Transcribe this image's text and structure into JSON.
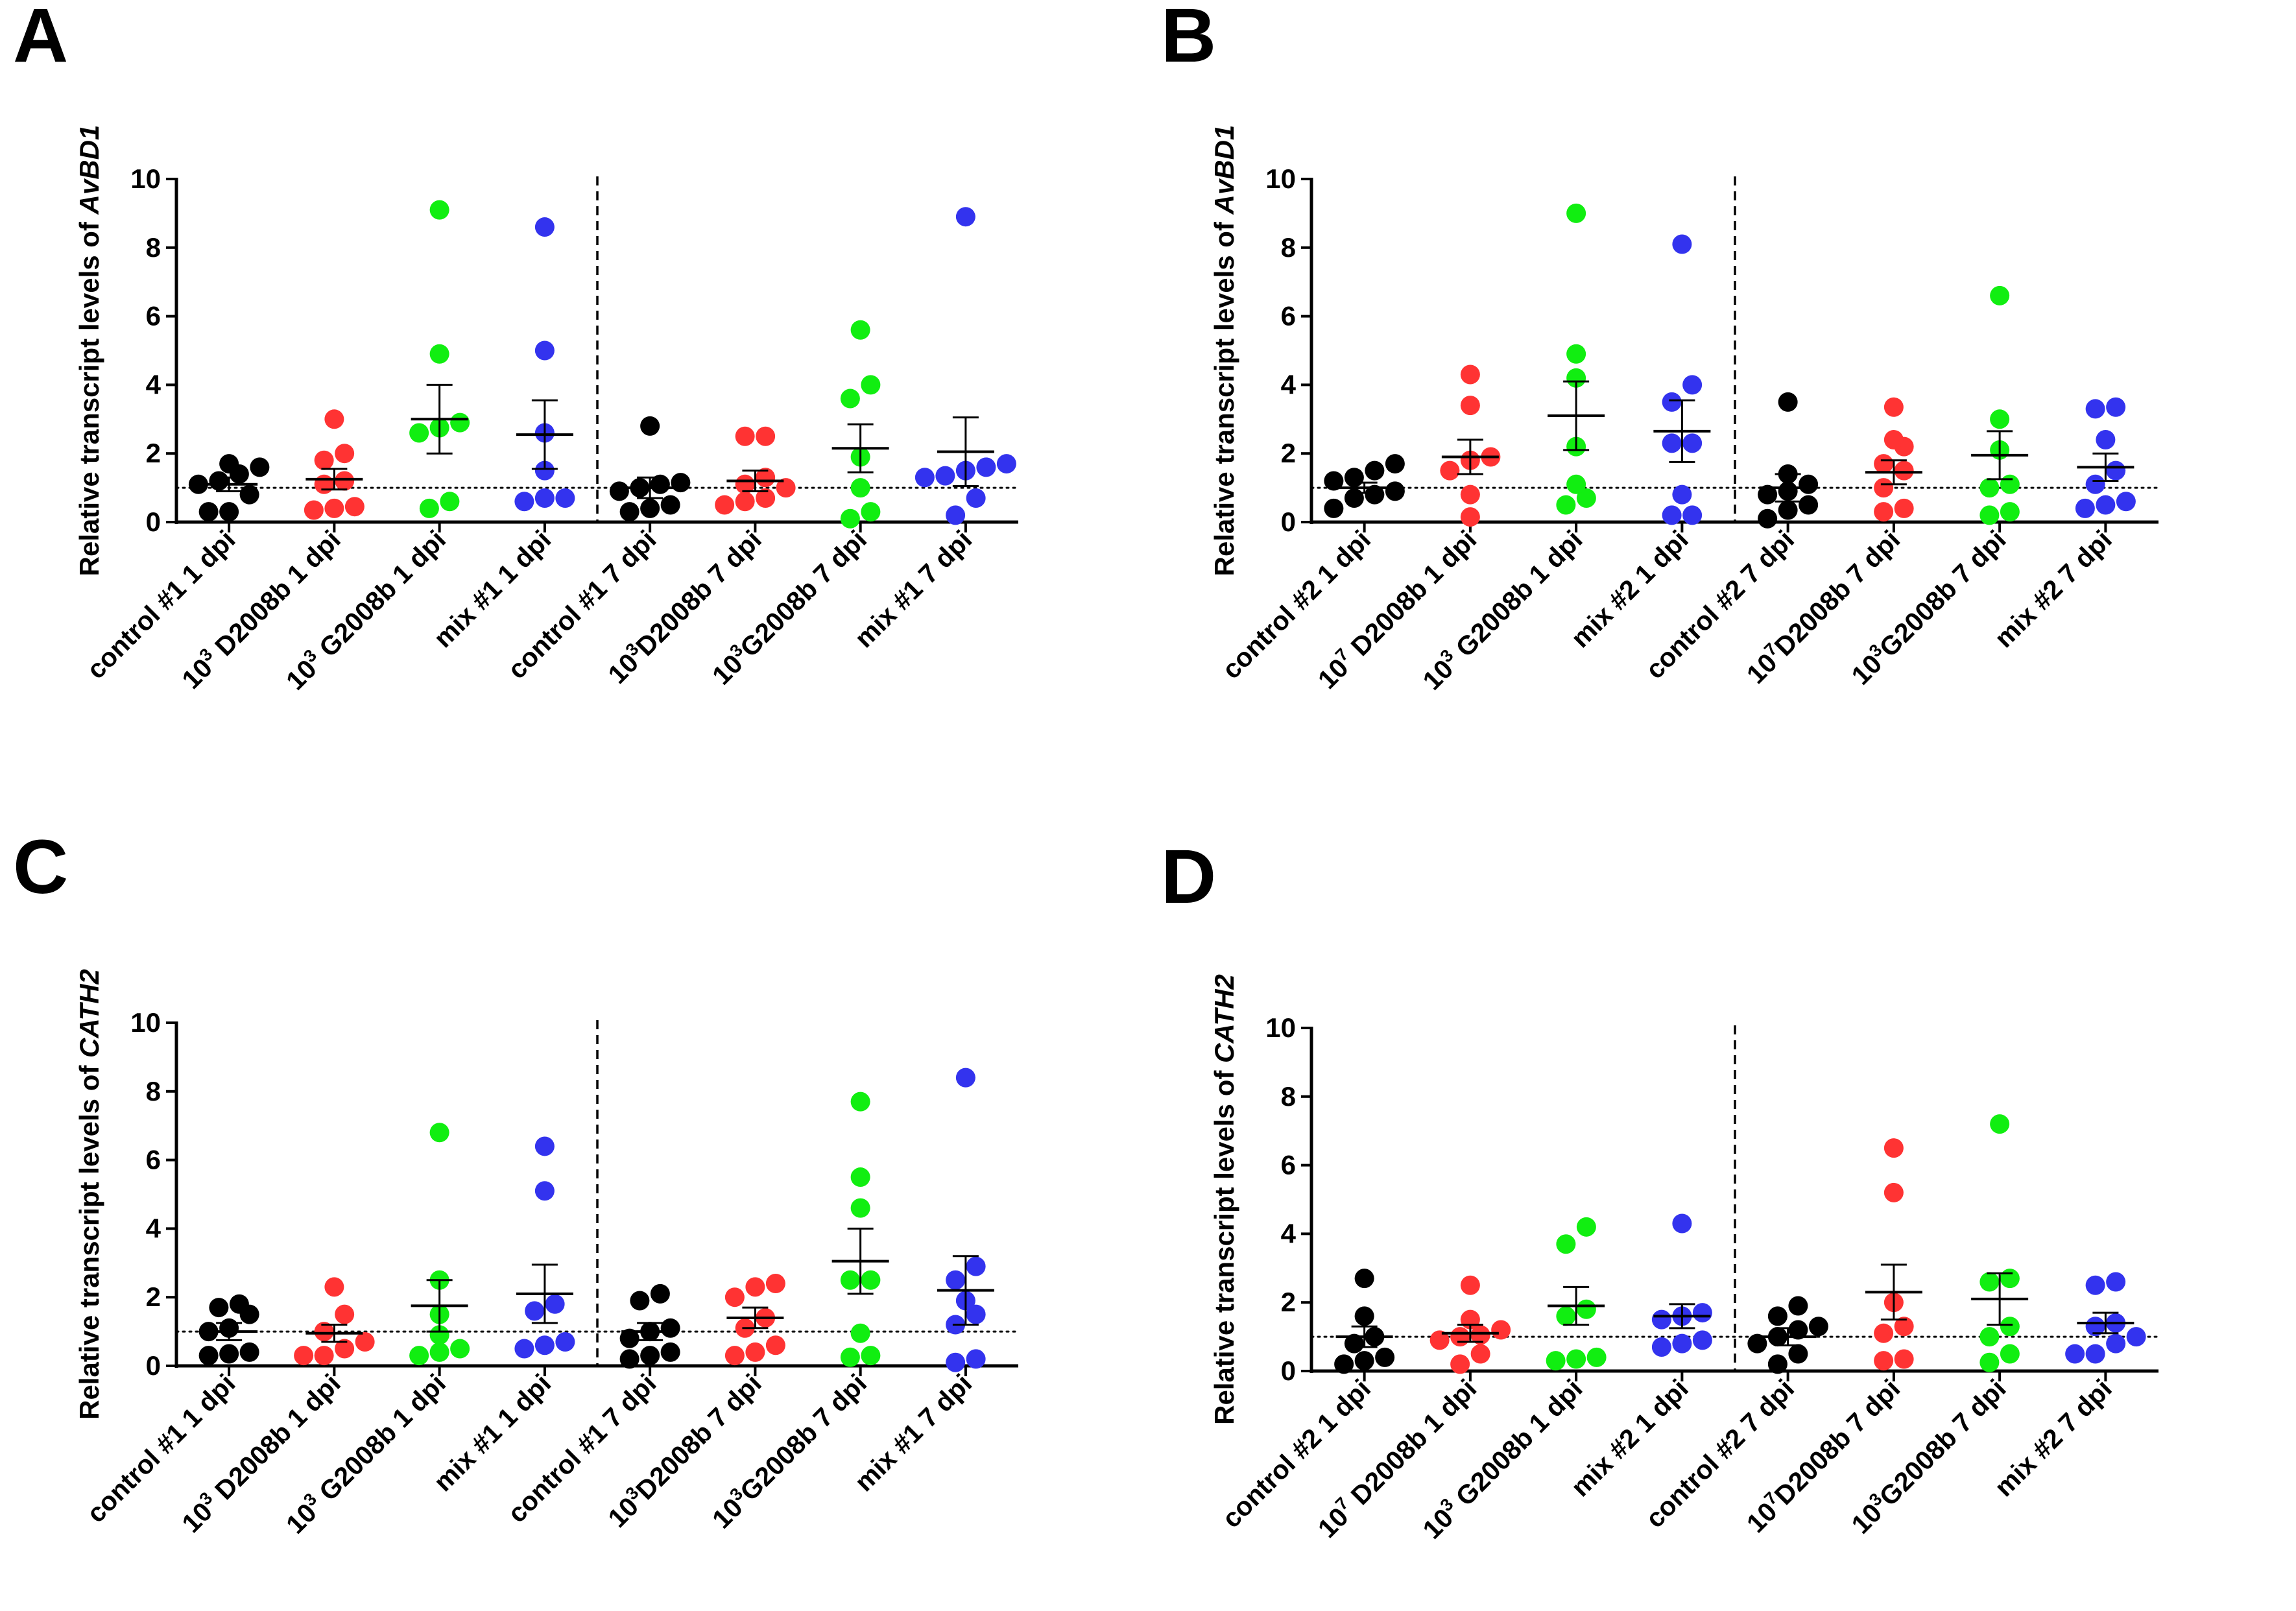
{
  "chart_data": [
    {
      "panel_label": "A",
      "type": "scatter",
      "ylabel_prefix": "Relative transcript levels of ",
      "ylabel_gene": "AvBD1",
      "ylim": [
        0,
        10
      ],
      "yticks": [
        "0",
        "2",
        "4",
        "6",
        "8",
        "10"
      ],
      "reference_line": 1,
      "divider_after_group": 4,
      "groups": [
        {
          "label": [
            {
              "t": "control #1 1 dpi"
            }
          ],
          "color": "#000000",
          "values": [
            0.3,
            0.3,
            0.8,
            1.1,
            1.2,
            1.4,
            1.6,
            1.7
          ],
          "mean": 1.1,
          "sem": 0.2
        },
        {
          "label": [
            {
              "t": "10"
            },
            {
              "t": "3",
              "sup": true
            },
            {
              "t": " D2008b 1 dpi"
            }
          ],
          "color": "#ff3333",
          "values": [
            0.35,
            0.4,
            0.45,
            1.1,
            1.2,
            1.8,
            2.0,
            3.0
          ],
          "mean": 1.25,
          "sem": 0.3
        },
        {
          "label": [
            {
              "t": "10"
            },
            {
              "t": "3",
              "sup": true
            },
            {
              "t": " G2008b 1 dpi"
            }
          ],
          "color": "#11ee11",
          "values": [
            0.4,
            0.6,
            2.6,
            2.75,
            2.9,
            4.9,
            9.1
          ],
          "mean": 3.0,
          "sem": 1.0
        },
        {
          "label": [
            {
              "t": "mix #1 1 dpi"
            }
          ],
          "color": "#3333ee",
          "values": [
            0.6,
            0.7,
            0.7,
            1.5,
            2.6,
            5.0,
            8.6
          ],
          "mean": 2.55,
          "sem": 1.0
        },
        {
          "label": [
            {
              "t": "control #1 7 dpi"
            }
          ],
          "color": "#000000",
          "values": [
            0.3,
            0.4,
            0.5,
            0.9,
            1.0,
            1.1,
            1.15,
            2.8
          ],
          "mean": 1.0,
          "sem": 0.3
        },
        {
          "label": [
            {
              "t": "10"
            },
            {
              "t": "3",
              "sup": true
            },
            {
              "t": "D2008b 7 dpi"
            }
          ],
          "color": "#ff3333",
          "values": [
            0.5,
            0.6,
            0.7,
            1.0,
            1.1,
            1.3,
            2.5,
            2.5
          ],
          "mean": 1.2,
          "sem": 0.3
        },
        {
          "label": [
            {
              "t": "10"
            },
            {
              "t": "3",
              "sup": true
            },
            {
              "t": "G2008b 7 dpi"
            }
          ],
          "color": "#11ee11",
          "values": [
            0.1,
            0.3,
            1.0,
            1.9,
            3.6,
            4.0,
            5.6
          ],
          "mean": 2.15,
          "sem": 0.7
        },
        {
          "label": [
            {
              "t": "mix #1 7 dpi"
            }
          ],
          "color": "#3333ee",
          "values": [
            0.2,
            0.7,
            1.3,
            1.35,
            1.5,
            1.6,
            1.7,
            8.9
          ],
          "mean": 2.05,
          "sem": 1.0
        }
      ]
    },
    {
      "panel_label": "B",
      "type": "scatter",
      "ylabel_prefix": "Relative transcript levels of ",
      "ylabel_gene": "AvBD1",
      "ylim": [
        0,
        10
      ],
      "yticks": [
        "0",
        "2",
        "4",
        "6",
        "8",
        "10"
      ],
      "reference_line": 1,
      "divider_after_group": 4,
      "groups": [
        {
          "label": [
            {
              "t": "control #2 1 dpi"
            }
          ],
          "color": "#000000",
          "values": [
            0.4,
            0.7,
            0.8,
            0.9,
            1.2,
            1.3,
            1.5,
            1.7
          ],
          "mean": 1.0,
          "sem": 0.15
        },
        {
          "label": [
            {
              "t": "10"
            },
            {
              "t": "7",
              "sup": true
            },
            {
              "t": " D2008b 1 dpi"
            }
          ],
          "color": "#ff3333",
          "values": [
            0.15,
            0.8,
            1.5,
            1.8,
            1.9,
            3.4,
            4.3
          ],
          "mean": 1.9,
          "sem": 0.5
        },
        {
          "label": [
            {
              "t": "10"
            },
            {
              "t": "3",
              "sup": true
            },
            {
              "t": " G2008b 1 dpi"
            }
          ],
          "color": "#11ee11",
          "values": [
            0.5,
            0.7,
            1.1,
            2.2,
            4.2,
            4.9,
            9.0
          ],
          "mean": 3.1,
          "sem": 1.0
        },
        {
          "label": [
            {
              "t": "mix #2 1 dpi"
            }
          ],
          "color": "#3333ee",
          "values": [
            0.2,
            0.2,
            0.8,
            2.3,
            2.3,
            3.5,
            4.0,
            8.1
          ],
          "mean": 2.65,
          "sem": 0.9
        },
        {
          "label": [
            {
              "t": "control #2 7 dpi"
            }
          ],
          "color": "#000000",
          "values": [
            0.1,
            0.35,
            0.5,
            0.8,
            0.9,
            1.1,
            1.4,
            3.5
          ],
          "mean": 1.0,
          "sem": 0.4
        },
        {
          "label": [
            {
              "t": "10"
            },
            {
              "t": "7",
              "sup": true
            },
            {
              "t": "D2008b 7 dpi"
            }
          ],
          "color": "#ff3333",
          "values": [
            0.3,
            0.4,
            1.0,
            1.5,
            1.7,
            2.2,
            2.4,
            3.35
          ],
          "mean": 1.45,
          "sem": 0.35
        },
        {
          "label": [
            {
              "t": "10"
            },
            {
              "t": "3",
              "sup": true
            },
            {
              "t": "G2008b 7 dpi"
            }
          ],
          "color": "#11ee11",
          "values": [
            0.2,
            0.3,
            1.0,
            1.1,
            2.1,
            3.0,
            6.6
          ],
          "mean": 1.95,
          "sem": 0.7
        },
        {
          "label": [
            {
              "t": "mix #2 7 dpi"
            }
          ],
          "color": "#3333ee",
          "values": [
            0.4,
            0.5,
            0.6,
            1.1,
            1.5,
            2.4,
            3.3,
            3.35
          ],
          "mean": 1.6,
          "sem": 0.4
        }
      ]
    },
    {
      "panel_label": "C",
      "type": "scatter",
      "ylabel_prefix": "Relative transcript levels of ",
      "ylabel_gene": "CATH2",
      "ylim": [
        0,
        10
      ],
      "yticks": [
        "0",
        "2",
        "4",
        "6",
        "8",
        "10"
      ],
      "reference_line": 1,
      "divider_after_group": 4,
      "groups": [
        {
          "label": [
            {
              "t": "control #1 1 dpi"
            }
          ],
          "color": "#000000",
          "values": [
            0.3,
            0.35,
            0.4,
            1.0,
            1.1,
            1.5,
            1.7,
            1.8
          ],
          "mean": 1.0,
          "sem": 0.25
        },
        {
          "label": [
            {
              "t": "10"
            },
            {
              "t": "3",
              "sup": true
            },
            {
              "t": " D2008b 1 dpi"
            }
          ],
          "color": "#ff3333",
          "values": [
            0.3,
            0.3,
            0.5,
            0.7,
            1.0,
            1.5,
            2.3
          ],
          "mean": 0.95,
          "sem": 0.25
        },
        {
          "label": [
            {
              "t": "10"
            },
            {
              "t": "3",
              "sup": true
            },
            {
              "t": " G2008b 1 dpi"
            }
          ],
          "color": "#11ee11",
          "values": [
            0.3,
            0.4,
            0.5,
            0.9,
            1.5,
            2.5,
            6.8
          ],
          "mean": 1.75,
          "sem": 0.75
        },
        {
          "label": [
            {
              "t": "mix #1 1 dpi"
            }
          ],
          "color": "#3333ee",
          "values": [
            0.5,
            0.6,
            0.7,
            1.6,
            1.8,
            5.1,
            6.4
          ],
          "mean": 2.1,
          "sem": 0.85
        },
        {
          "label": [
            {
              "t": "control #1 7 dpi"
            }
          ],
          "color": "#000000",
          "values": [
            0.2,
            0.3,
            0.4,
            0.8,
            1.0,
            1.1,
            1.9,
            2.1
          ],
          "mean": 1.0,
          "sem": 0.25
        },
        {
          "label": [
            {
              "t": "10"
            },
            {
              "t": "3",
              "sup": true
            },
            {
              "t": "D2008b 7 dpi"
            }
          ],
          "color": "#ff3333",
          "values": [
            0.3,
            0.4,
            0.6,
            1.1,
            1.4,
            2.0,
            2.3,
            2.4
          ],
          "mean": 1.4,
          "sem": 0.3
        },
        {
          "label": [
            {
              "t": "10"
            },
            {
              "t": "3",
              "sup": true
            },
            {
              "t": "G2008b 7 dpi"
            }
          ],
          "color": "#11ee11",
          "values": [
            0.25,
            0.3,
            0.95,
            2.5,
            2.5,
            4.6,
            5.5,
            7.7
          ],
          "mean": 3.05,
          "sem": 0.95
        },
        {
          "label": [
            {
              "t": "mix #1 7 dpi"
            }
          ],
          "color": "#3333ee",
          "values": [
            0.1,
            0.2,
            1.2,
            1.5,
            1.9,
            2.5,
            2.9,
            8.4
          ],
          "mean": 2.2,
          "sem": 1.0
        }
      ]
    },
    {
      "panel_label": "D",
      "type": "scatter",
      "ylabel_prefix": "Relative transcript levels of ",
      "ylabel_gene": "CATH2",
      "ylim": [
        0,
        10
      ],
      "yticks": [
        "0",
        "2",
        "4",
        "6",
        "8",
        "10"
      ],
      "reference_line": 1,
      "divider_after_group": 4,
      "groups": [
        {
          "label": [
            {
              "t": "control #2 1 dpi"
            }
          ],
          "color": "#000000",
          "values": [
            0.2,
            0.3,
            0.4,
            0.8,
            1.0,
            1.6,
            2.7
          ],
          "mean": 1.0,
          "sem": 0.3
        },
        {
          "label": [
            {
              "t": "10"
            },
            {
              "t": "7",
              "sup": true
            },
            {
              "t": " D2008b 1 dpi"
            }
          ],
          "color": "#ff3333",
          "values": [
            0.2,
            0.5,
            0.9,
            1.0,
            1.05,
            1.2,
            1.5,
            2.5
          ],
          "mean": 1.1,
          "sem": 0.25
        },
        {
          "label": [
            {
              "t": "10"
            },
            {
              "t": "3",
              "sup": true
            },
            {
              "t": " G2008b 1 dpi"
            }
          ],
          "color": "#11ee11",
          "values": [
            0.3,
            0.35,
            0.4,
            1.6,
            1.8,
            3.7,
            4.2
          ],
          "mean": 1.9,
          "sem": 0.55
        },
        {
          "label": [
            {
              "t": "mix #2 1 dpi"
            }
          ],
          "color": "#3333ee",
          "values": [
            0.7,
            0.8,
            0.9,
            1.5,
            1.6,
            1.7,
            4.3
          ],
          "mean": 1.6,
          "sem": 0.35
        },
        {
          "label": [
            {
              "t": "control #2 7 dpi"
            }
          ],
          "color": "#000000",
          "values": [
            0.2,
            0.5,
            0.8,
            1.0,
            1.2,
            1.3,
            1.6,
            1.9
          ],
          "mean": 1.0,
          "sem": 0.25
        },
        {
          "label": [
            {
              "t": "10"
            },
            {
              "t": "7",
              "sup": true
            },
            {
              "t": "D2008b 7 dpi"
            }
          ],
          "color": "#ff3333",
          "values": [
            0.3,
            0.35,
            1.1,
            1.3,
            2.0,
            5.2,
            6.5
          ],
          "mean": 2.3,
          "sem": 0.8
        },
        {
          "label": [
            {
              "t": "10"
            },
            {
              "t": "3",
              "sup": true
            },
            {
              "t": "G2008b 7 dpi"
            }
          ],
          "color": "#11ee11",
          "values": [
            0.25,
            0.5,
            1.0,
            1.3,
            2.6,
            2.7,
            7.2
          ],
          "mean": 2.1,
          "sem": 0.75
        },
        {
          "label": [
            {
              "t": "mix #2 7 dpi"
            }
          ],
          "color": "#3333ee",
          "values": [
            0.5,
            0.5,
            0.8,
            1.0,
            1.3,
            1.4,
            2.5,
            2.6
          ],
          "mean": 1.4,
          "sem": 0.3
        }
      ]
    }
  ]
}
